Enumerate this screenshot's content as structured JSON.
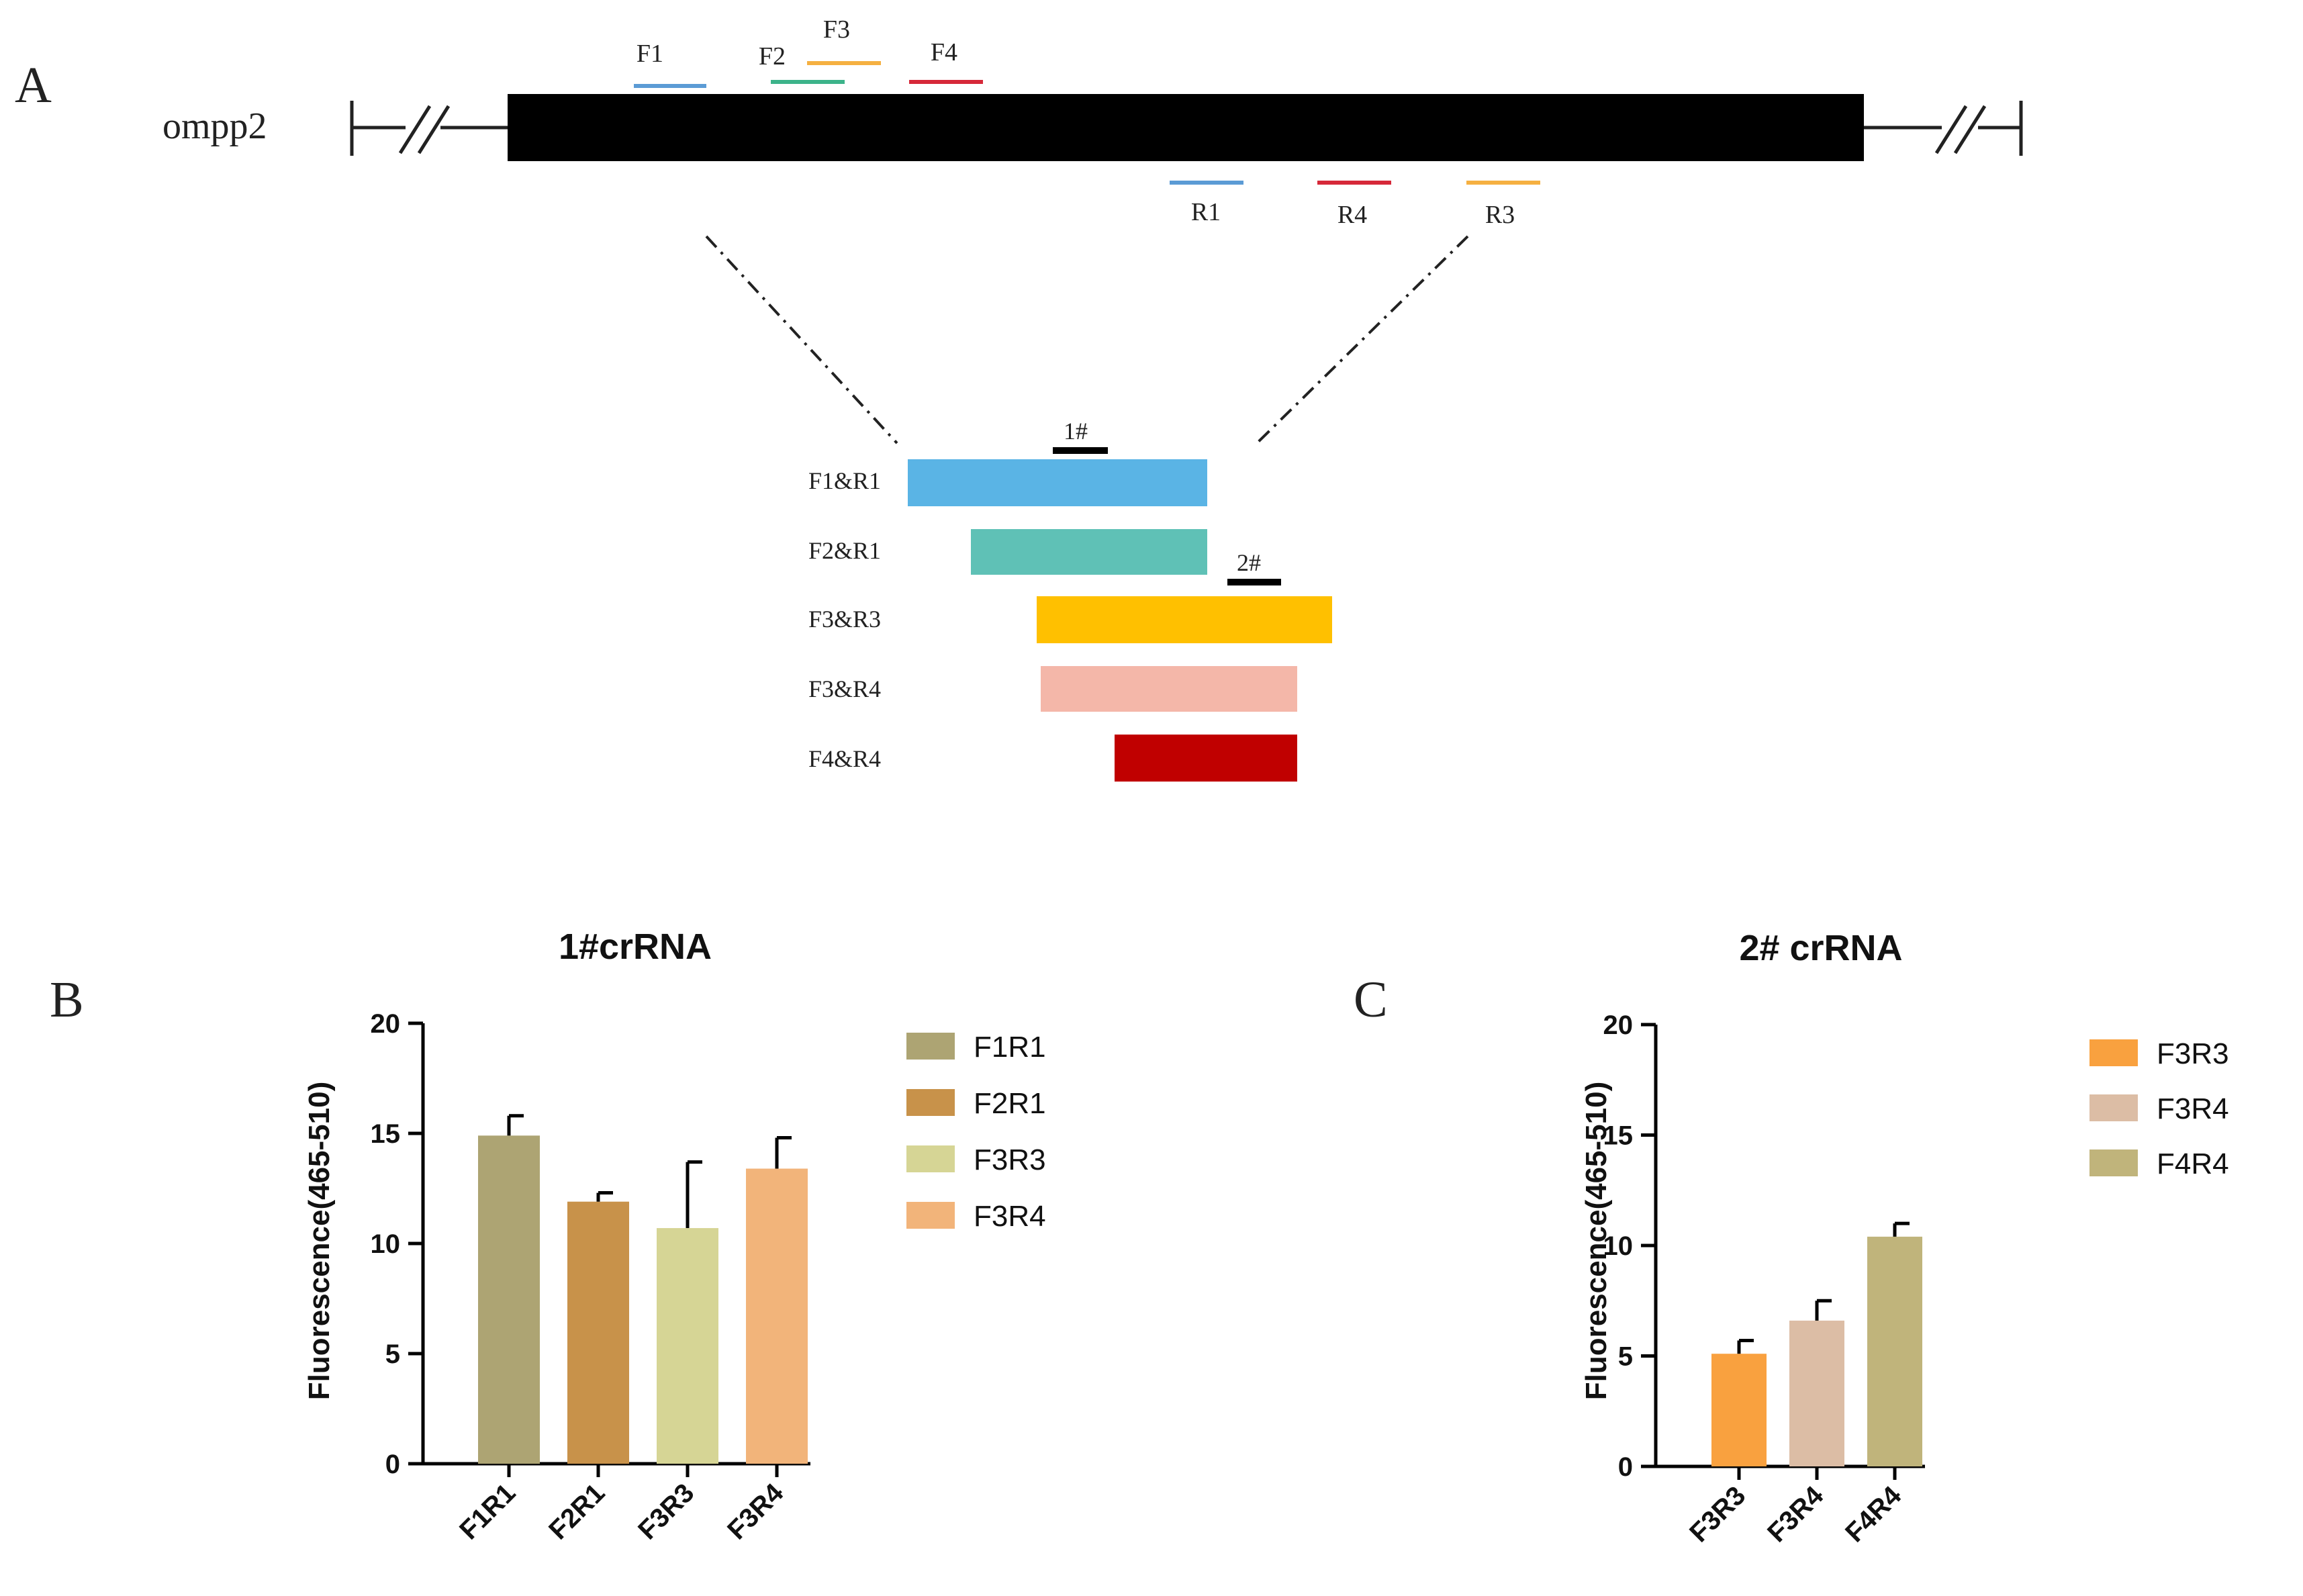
{
  "panel_a": {
    "label": "A",
    "gene_name": "ompp2",
    "forward_primers": [
      {
        "name": "F1",
        "color": "#5b9bd5"
      },
      {
        "name": "F2",
        "color": "#3cb38a"
      },
      {
        "name": "F3",
        "color": "#f5b041"
      },
      {
        "name": "F4",
        "color": "#d62839"
      }
    ],
    "reverse_primers": [
      {
        "name": "R1",
        "color": "#5b9bd5"
      },
      {
        "name": "R4",
        "color": "#d62839"
      },
      {
        "name": "R3",
        "color": "#f5b041"
      }
    ],
    "crRNA_marks": [
      "1#",
      "2#"
    ],
    "amplicons": [
      {
        "name": "F1&R1",
        "color": "#5ab4e5"
      },
      {
        "name": "F2&R1",
        "color": "#5fc1b6"
      },
      {
        "name": "F3&R3",
        "color": "#ffc000"
      },
      {
        "name": "F3&R4",
        "color": "#f4b7a9"
      },
      {
        "name": "F4&R4",
        "color": "#c00000"
      }
    ]
  },
  "chart_data": [
    {
      "panel": "B",
      "type": "bar",
      "title": "1#crRNA",
      "ylabel": "Fluorescence(465-510)",
      "xlabel": "",
      "ylim": [
        0,
        20
      ],
      "yticks": [
        "0",
        "5",
        "10",
        "15",
        "20"
      ],
      "categories": [
        "F1R1",
        "F2R1",
        "F3R3",
        "F3R4"
      ],
      "values": [
        14.9,
        11.9,
        10.7,
        13.4
      ],
      "errors": [
        0.9,
        0.4,
        3.0,
        1.4
      ],
      "colors": [
        "#ada473",
        "#c8924a",
        "#d6d595",
        "#f2b47a"
      ],
      "legend": [
        "F1R1",
        "F2R1",
        "F3R3",
        "F3R4"
      ],
      "legend_position": "right"
    },
    {
      "panel": "C",
      "type": "bar",
      "title": "2# crRNA",
      "ylabel": "Fluorescence(465-510)",
      "xlabel": "",
      "ylim": [
        0,
        20
      ],
      "yticks": [
        "0",
        "5",
        "10",
        "15",
        "20"
      ],
      "categories": [
        "F3R3",
        "F3R4",
        "F4R4"
      ],
      "values": [
        5.1,
        6.6,
        10.4
      ],
      "errors": [
        0.6,
        0.9,
        0.6
      ],
      "colors": [
        "#f9a13f",
        "#dcbda5",
        "#c0b47b"
      ],
      "legend": [
        "F3R3",
        "F3R4",
        "F4R4"
      ],
      "legend_position": "right"
    }
  ]
}
